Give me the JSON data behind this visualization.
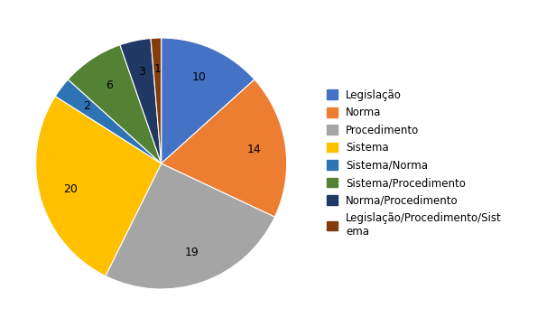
{
  "labels": [
    "Legislação",
    "Norma",
    "Procedimento",
    "Sistema",
    "Sistema/Norma",
    "Sistema/Procedimento",
    "Norma/Procedimento",
    "Legislação/Procedimento/Sistema"
  ],
  "values": [
    10,
    14,
    19,
    20,
    2,
    6,
    3,
    1
  ],
  "colors": [
    "#4472C4",
    "#ED7D31",
    "#A5A5A5",
    "#FFC000",
    "#2E74B5",
    "#548235",
    "#1F3864",
    "#843C0C"
  ],
  "legend_labels": [
    "Legislação",
    "Norma",
    "Procedimento",
    "Sistema",
    "Sistema/Norma",
    "Sistema/Procedimento",
    "Norma/Procedimento",
    "Legislação/Procedimento/Sist\nema"
  ],
  "autopct_fontsize": 9,
  "startangle": 90,
  "figsize": [
    6.16,
    3.62
  ],
  "dpi": 100
}
